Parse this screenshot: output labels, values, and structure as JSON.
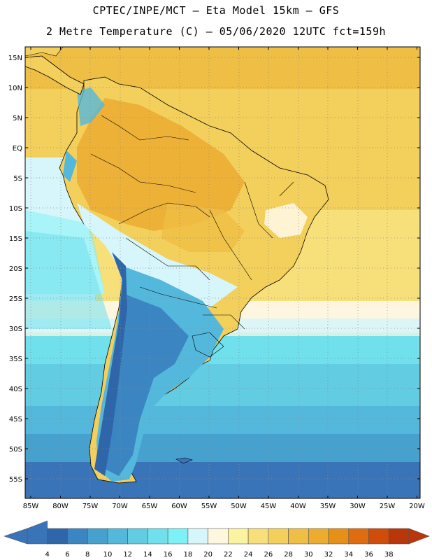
{
  "header": {
    "line1": "CPTEC/INPE/MCT –  Eta Model 15km – GFS",
    "line2": "2 Metre Temperature (C) – 05/06/2020 12UTC fct=159h"
  },
  "lat_labels": [
    "15N",
    "10N",
    "5N",
    "EQ",
    "5S",
    "10S",
    "15S",
    "20S",
    "25S",
    "30S",
    "35S",
    "40S",
    "45S",
    "50S",
    "55S"
  ],
  "lon_labels": [
    "85W",
    "80W",
    "75W",
    "70W",
    "65W",
    "60W",
    "55W",
    "50W",
    "45W",
    "40W",
    "35W",
    "30W",
    "25W",
    "20W"
  ],
  "colorbar": {
    "labels": [
      "4",
      "6",
      "8",
      "10",
      "12",
      "14",
      "16",
      "18",
      "20",
      "22",
      "24",
      "26",
      "28",
      "30",
      "32",
      "34",
      "36",
      "38"
    ],
    "colors": [
      "#3a74b8",
      "#2f66aa",
      "#3b86c2",
      "#46a1cf",
      "#54b8dc",
      "#61cce2",
      "#6fe0ec",
      "#7cf2f6",
      "#d6f6fb",
      "#fff6e0",
      "#fbf3a0",
      "#f7e07a",
      "#f3cf5c",
      "#efbe44",
      "#ebac30",
      "#e79018",
      "#df6c10",
      "#cf4c0a",
      "#b8360a"
    ]
  }
}
